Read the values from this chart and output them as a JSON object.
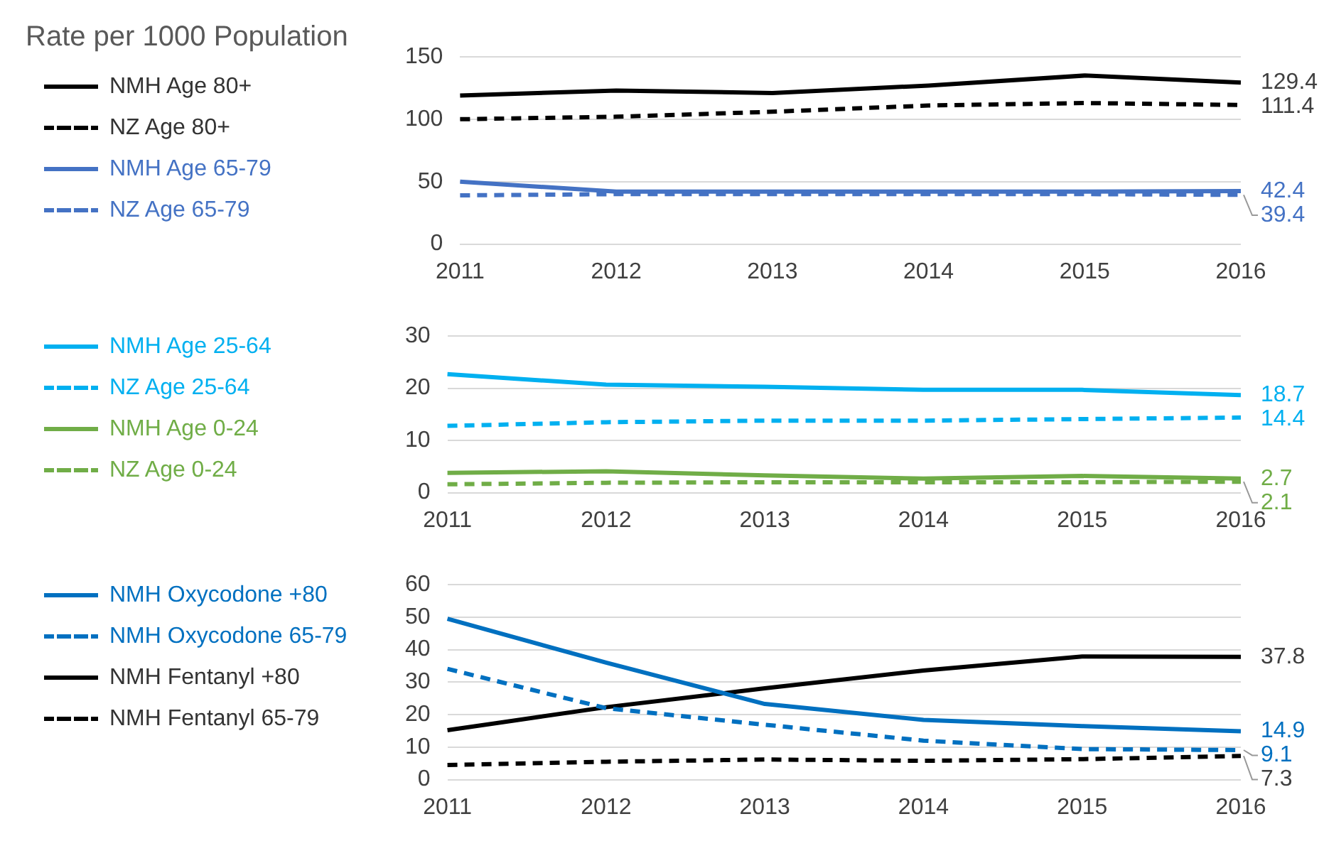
{
  "chart_data": [
    {
      "type": "line",
      "title": "Rate per 1000 Population",
      "categories": [
        "2011",
        "2012",
        "2013",
        "2014",
        "2015",
        "2016"
      ],
      "ylim": [
        0,
        150
      ],
      "yticks": [
        0,
        50,
        100,
        150
      ],
      "grid": "y",
      "legend": "left",
      "marker": "none",
      "series": [
        {
          "name": "NMH Age 80+",
          "color": "#000000",
          "line_style": "solid",
          "values": [
            119,
            123,
            121,
            127,
            135,
            129.4
          ],
          "value_labels": [
            null,
            null,
            null,
            null,
            null,
            "129.4"
          ]
        },
        {
          "name": "NZ Age 80+",
          "color": "#000000",
          "line_style": "dashed",
          "values": [
            100,
            102,
            106,
            111,
            113,
            111.4
          ],
          "value_labels": [
            null,
            null,
            null,
            null,
            null,
            "111.4"
          ]
        },
        {
          "name": "NMH Age 65-79",
          "color": "#4472c4",
          "line_style": "solid",
          "values": [
            50,
            42,
            42,
            42,
            42,
            42.4
          ],
          "value_labels": [
            null,
            null,
            null,
            null,
            null,
            "42.4"
          ]
        },
        {
          "name": "NZ Age 65-79",
          "color": "#4472c4",
          "line_style": "dashed",
          "values": [
            39,
            40,
            40,
            40,
            40,
            39.4
          ],
          "value_labels": [
            null,
            null,
            null,
            null,
            null,
            "39.4"
          ]
        }
      ]
    },
    {
      "type": "line",
      "categories": [
        "2011",
        "2012",
        "2013",
        "2014",
        "2015",
        "2016"
      ],
      "ylim": [
        0,
        30
      ],
      "yticks": [
        0,
        10,
        20,
        30
      ],
      "grid": "y",
      "legend": "left",
      "marker": "none",
      "series": [
        {
          "name": "NMH Age 25-64",
          "color": "#00b0f0",
          "line_style": "solid",
          "values": [
            22.7,
            20.7,
            20.3,
            19.7,
            19.7,
            18.7
          ],
          "value_labels": [
            null,
            null,
            null,
            null,
            null,
            "18.7"
          ]
        },
        {
          "name": "NZ Age 25-64",
          "color": "#00b0f0",
          "line_style": "dashed",
          "values": [
            12.8,
            13.5,
            13.8,
            13.8,
            14.1,
            14.4
          ],
          "value_labels": [
            null,
            null,
            null,
            null,
            null,
            "14.4"
          ]
        },
        {
          "name": "NMH Age 0-24",
          "color": "#70ad47",
          "line_style": "solid",
          "values": [
            3.8,
            4.1,
            3.3,
            2.7,
            3.2,
            2.7
          ],
          "value_labels": [
            null,
            null,
            null,
            null,
            null,
            "2.7"
          ]
        },
        {
          "name": "NZ Age 0-24",
          "color": "#70ad47",
          "line_style": "dashed",
          "values": [
            1.6,
            1.9,
            2.0,
            2.0,
            2.0,
            2.1
          ],
          "value_labels": [
            null,
            null,
            null,
            null,
            null,
            "2.1"
          ]
        }
      ]
    },
    {
      "type": "line",
      "categories": [
        "2011",
        "2012",
        "2013",
        "2014",
        "2015",
        "2016"
      ],
      "ylim": [
        0,
        60
      ],
      "yticks": [
        0,
        10,
        20,
        30,
        40,
        50,
        60
      ],
      "grid": "y",
      "legend": "left",
      "marker": "none",
      "series": [
        {
          "name": "NMH Oxycodone +80",
          "color": "#0070c0",
          "line_style": "solid",
          "values": [
            49.5,
            36,
            23.3,
            18.4,
            16.5,
            14.9
          ],
          "value_labels": [
            null,
            null,
            null,
            null,
            null,
            "14.9"
          ]
        },
        {
          "name": "NMH Oxycodone 65-79",
          "color": "#0070c0",
          "line_style": "dashed",
          "values": [
            34.1,
            22,
            16.9,
            12,
            9.4,
            9.1
          ],
          "value_labels": [
            null,
            null,
            null,
            null,
            null,
            "9.1"
          ]
        },
        {
          "name": "NMH Fentanyl +80",
          "color": "#000000",
          "line_style": "solid",
          "values": [
            15.2,
            22.3,
            28.1,
            33.6,
            37.9,
            37.8
          ],
          "value_labels": [
            null,
            null,
            null,
            null,
            null,
            "37.8"
          ]
        },
        {
          "name": "NMH Fentanyl 65-79",
          "color": "#000000",
          "line_style": "dashed",
          "values": [
            4.5,
            5.5,
            6.2,
            5.8,
            6.3,
            7.3
          ],
          "value_labels": [
            null,
            null,
            null,
            null,
            null,
            "7.3"
          ]
        }
      ]
    }
  ]
}
